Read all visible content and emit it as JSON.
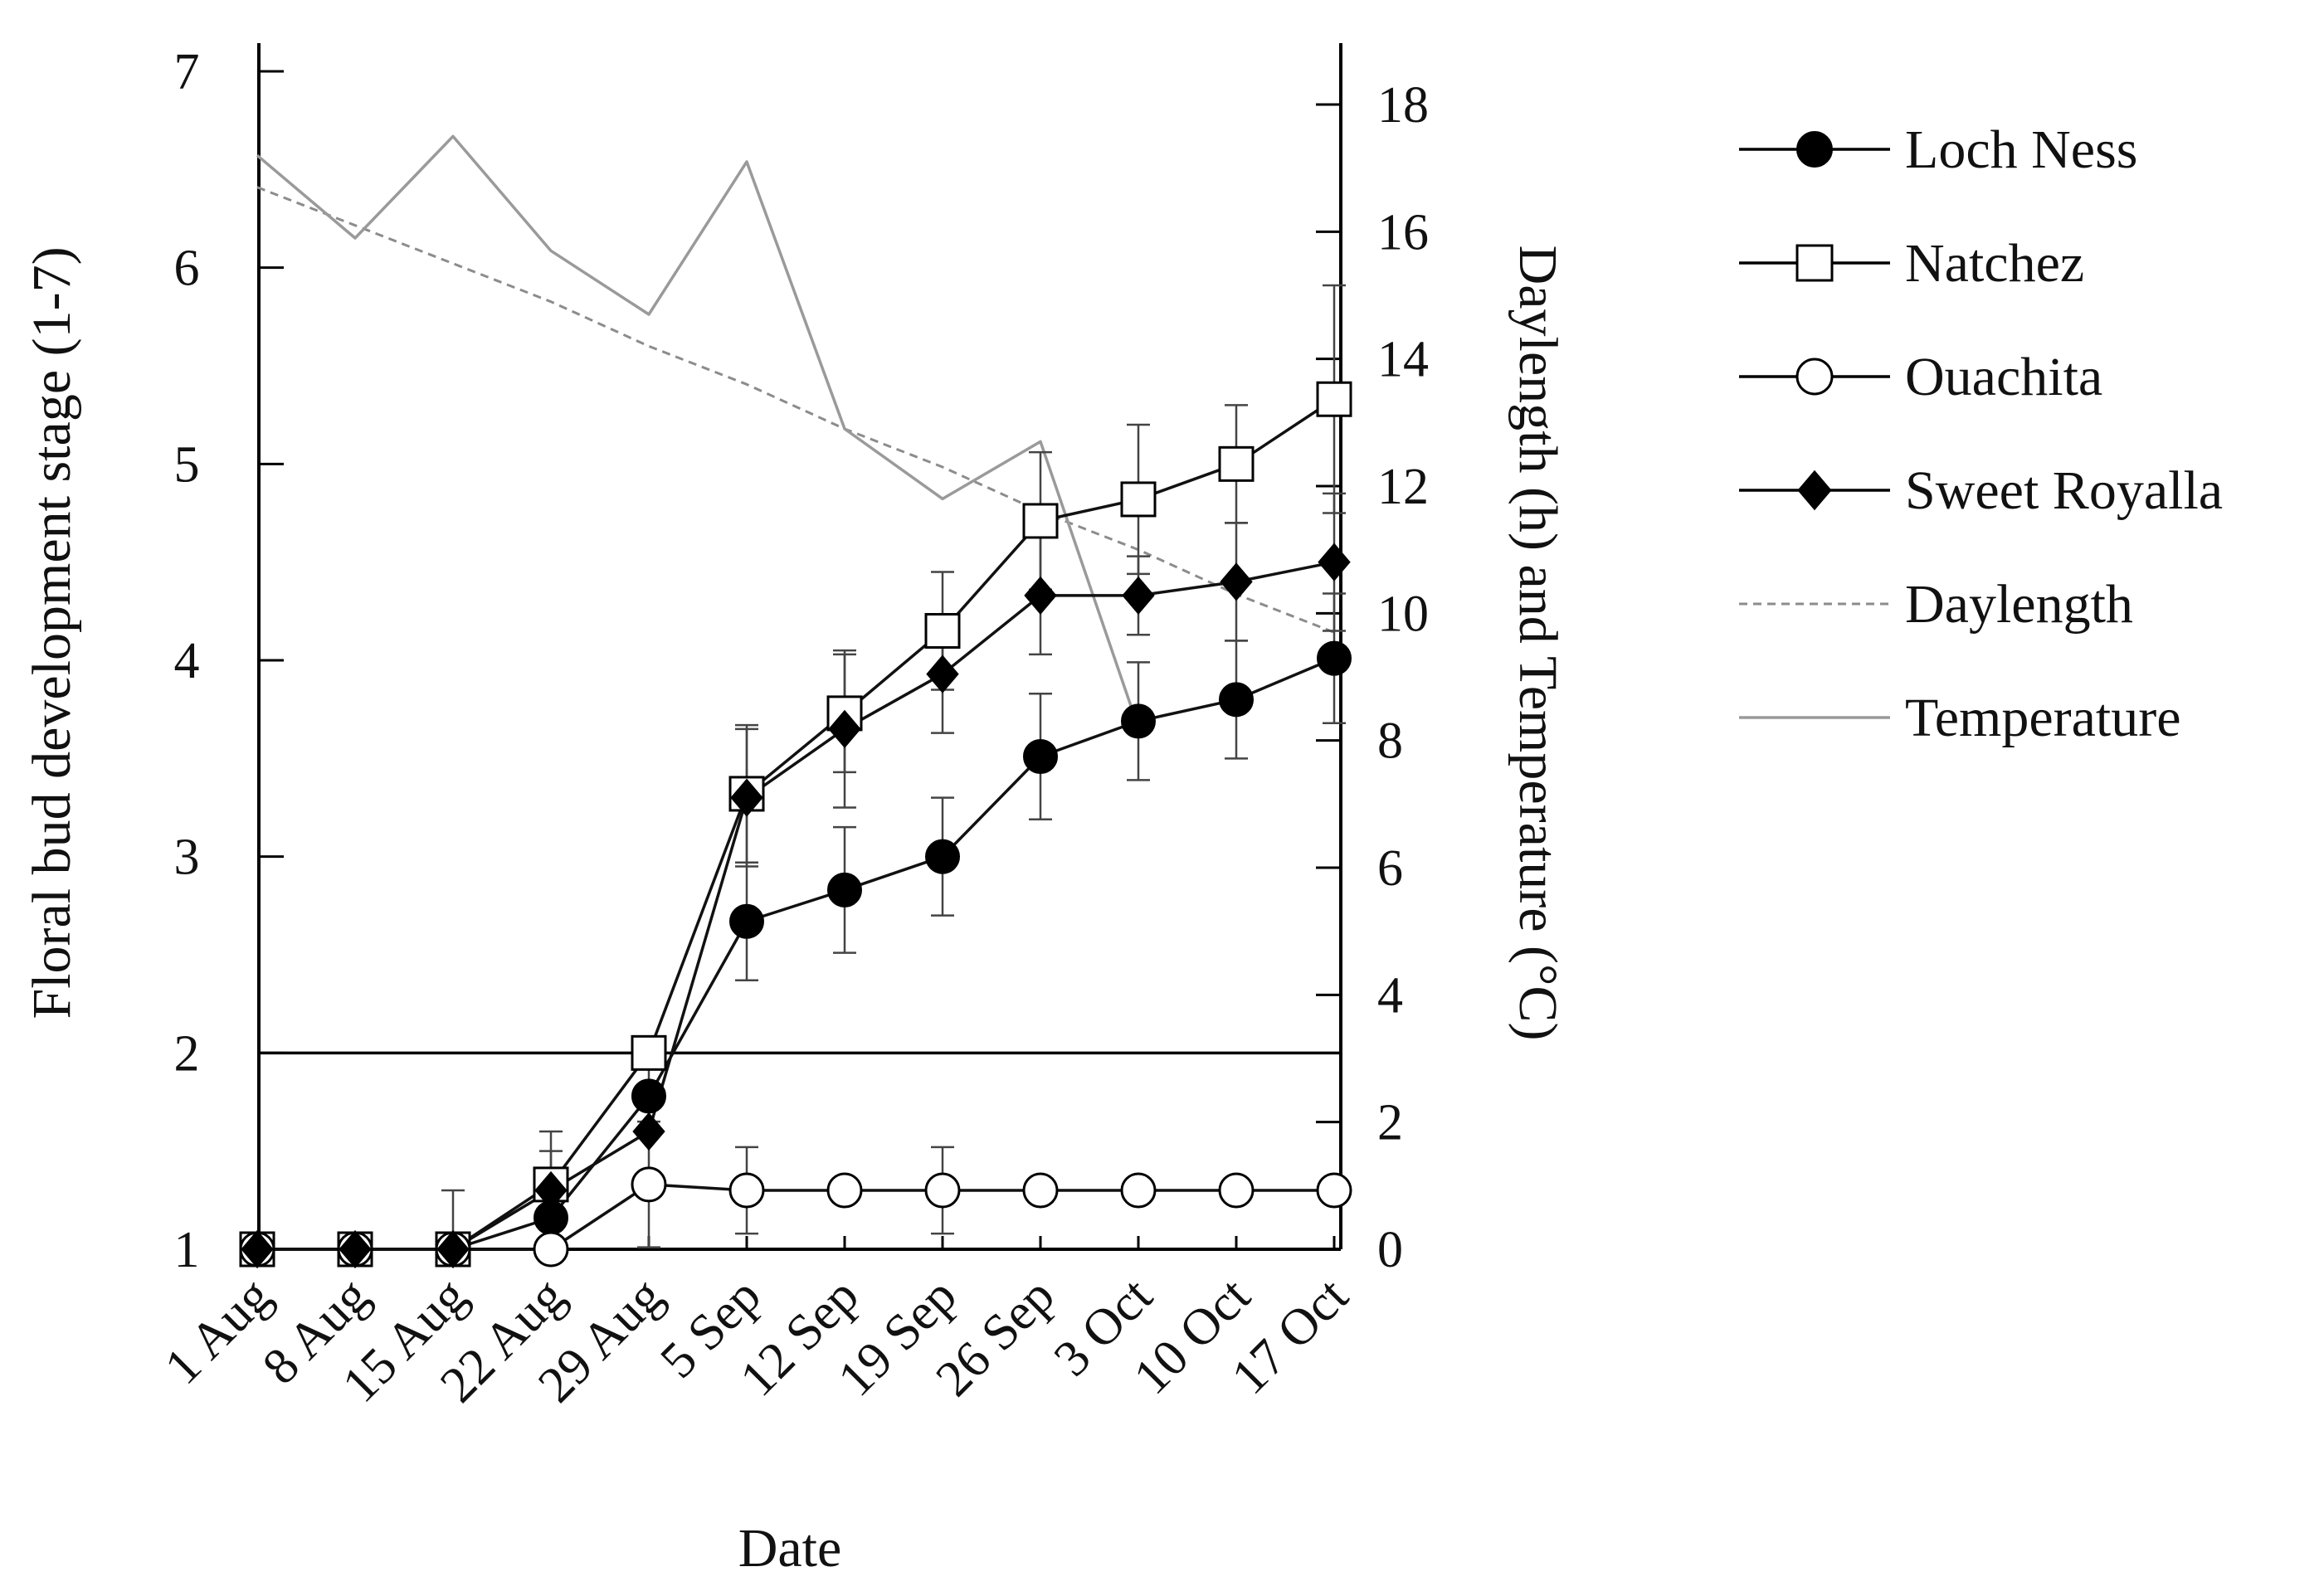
{
  "chart_data": {
    "type": "line",
    "categories": [
      "1 Aug",
      "8 Aug",
      "15 Aug",
      "22 Aug",
      "29 Aug",
      "5 Sep",
      "12 Sep",
      "19 Sep",
      "26 Sep",
      "3 Oct",
      "10 Oct",
      "17 Oct"
    ],
    "xlabel": "Date",
    "ylabel": "Floral bud development stage (1-7)",
    "y2label": "Daylength (h) and Temperature (°C)",
    "ylim": [
      1,
      7
    ],
    "y2lim": [
      0,
      18
    ],
    "yticks": [
      1,
      2,
      3,
      4,
      5,
      6,
      7
    ],
    "y2ticks": [
      0,
      2,
      4,
      6,
      8,
      10,
      12,
      14,
      16,
      18
    ],
    "reference_line_y": 2,
    "legend_position": "right",
    "series": [
      {
        "name": "Loch Ness",
        "axis": "left",
        "marker": "filled-circle",
        "values": [
          1,
          1,
          1,
          1.16,
          1.78,
          2.67,
          2.83,
          3.0,
          3.51,
          3.69,
          3.8,
          4.01
        ],
        "errors": [
          0,
          0,
          0,
          0.15,
          0.2,
          0.3,
          0.32,
          0.3,
          0.32,
          0.3,
          0.3,
          0.33
        ]
      },
      {
        "name": "Natchez",
        "axis": "left",
        "marker": "open-square",
        "values": [
          1,
          1,
          1,
          1.33,
          2.0,
          3.32,
          3.73,
          4.15,
          4.71,
          4.82,
          5.0,
          5.33
        ],
        "errors": [
          0,
          0,
          0,
          0.27,
          0,
          0.35,
          0.3,
          0.3,
          0.35,
          0.38,
          0.3,
          0.58
        ]
      },
      {
        "name": "Ouachita",
        "axis": "left",
        "marker": "open-circle",
        "values": [
          1,
          1,
          1,
          1.0,
          1.33,
          1.3,
          1.3,
          1.3,
          1.3,
          1.3,
          1.3,
          1.3
        ],
        "errors": [
          0,
          0,
          0.3,
          0,
          0.32,
          0.22,
          0,
          0.22,
          0,
          0,
          0,
          0
        ]
      },
      {
        "name": "Sweet Royalla",
        "axis": "left",
        "marker": "filled-diamond",
        "values": [
          1,
          1,
          1,
          1.3,
          1.6,
          3.3,
          3.65,
          3.93,
          4.33,
          4.33,
          4.4,
          4.5
        ],
        "errors": [
          0,
          0,
          0,
          0.2,
          0,
          0.35,
          0.4,
          0.3,
          0.3,
          0.2,
          0.3,
          0.35
        ]
      },
      {
        "name": "Daylength",
        "axis": "right",
        "style": "dashed",
        "values": [
          16.7,
          16.1,
          15.5,
          14.9,
          14.2,
          13.6,
          12.9,
          12.3,
          11.6,
          11.0,
          10.3,
          9.7
        ]
      },
      {
        "name": "Temperature",
        "axis": "right",
        "style": "solid-grey",
        "values": [
          17.2,
          15.9,
          17.5,
          15.7,
          14.7,
          17.1,
          12.9,
          11.8,
          12.7,
          8.2,
          null,
          null
        ]
      }
    ]
  },
  "colors": {
    "axis": "#000000",
    "series_line": "#111111",
    "daylength": "#8c8c8c",
    "temperature": "#9a9a9a"
  }
}
